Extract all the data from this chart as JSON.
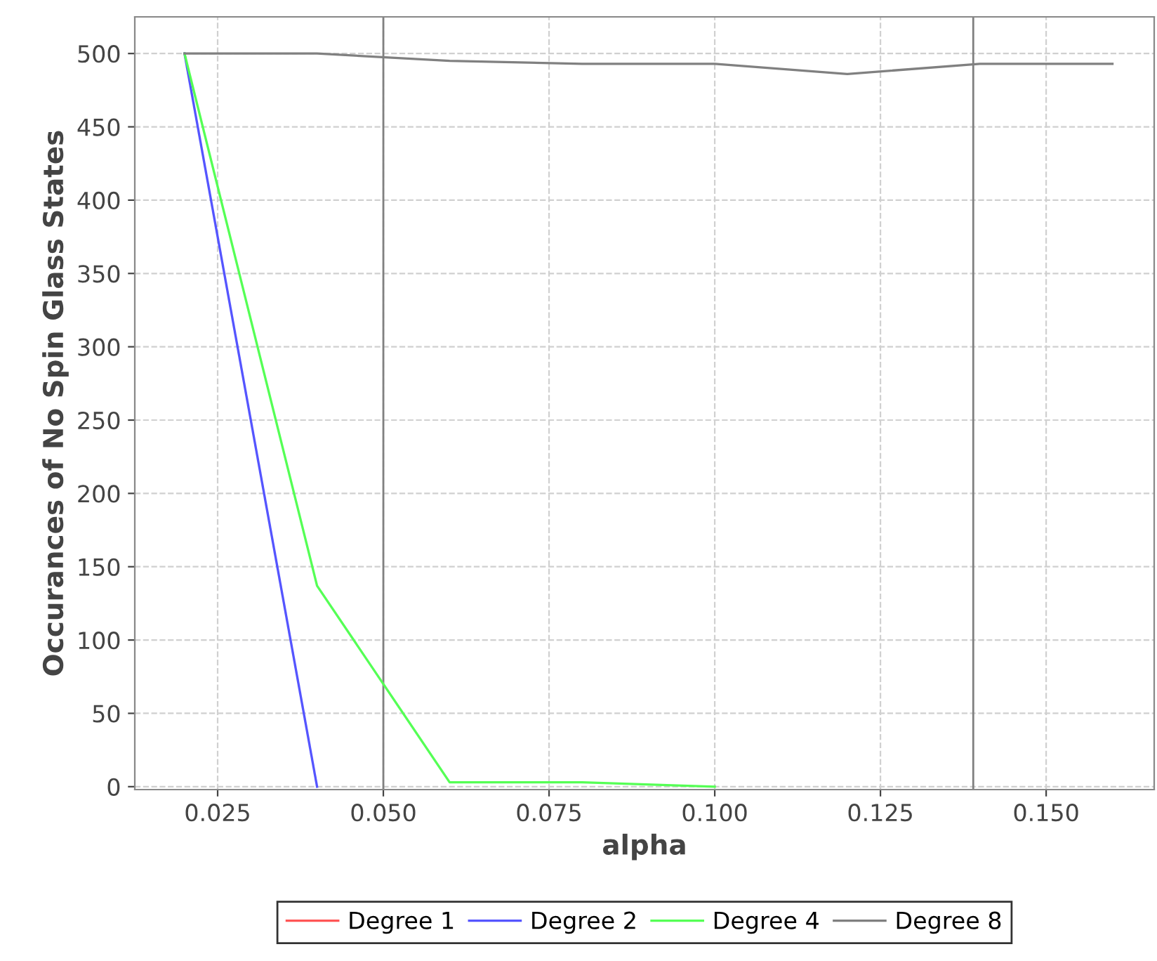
{
  "chart_data": {
    "type": "line",
    "xlabel": "alpha",
    "ylabel": "Occurances of No Spin Glass States",
    "xlim": [
      0.0125,
      0.1663
    ],
    "ylim": [
      -2,
      525
    ],
    "xticks": [
      {
        "value": 0.025,
        "label": "0.025"
      },
      {
        "value": 0.05,
        "label": "0.050"
      },
      {
        "value": 0.075,
        "label": "0.075"
      },
      {
        "value": 0.1,
        "label": "0.100"
      },
      {
        "value": 0.125,
        "label": "0.125"
      },
      {
        "value": 0.15,
        "label": "0.150"
      }
    ],
    "yticks": [
      0,
      50,
      100,
      150,
      200,
      250,
      300,
      350,
      400,
      450,
      500
    ],
    "grid": true,
    "legend": "bottom",
    "marker": "none",
    "line_style": "solid",
    "ref_lines": [
      {
        "axis": "x",
        "value": 0.05,
        "color": "#808080"
      },
      {
        "axis": "x",
        "value": 0.139,
        "color": "#808080"
      }
    ],
    "series": [
      {
        "name": "Degree 1",
        "color": "#ff5555"
      },
      {
        "name": "Degree 2",
        "color": "#5555ff",
        "x": [
          0.02,
          0.04
        ],
        "values": [
          500,
          0
        ]
      },
      {
        "name": "Degree 4",
        "color": "#55ff55",
        "x": [
          0.02,
          0.04,
          0.06,
          0.08,
          0.1
        ],
        "values": [
          500,
          137,
          3,
          3,
          0
        ]
      },
      {
        "name": "Degree 8",
        "color": "#808080",
        "x": [
          0.02,
          0.04,
          0.06,
          0.08,
          0.1,
          0.12,
          0.14,
          0.16
        ],
        "values": [
          500,
          500,
          495,
          493,
          493,
          486,
          493,
          493
        ]
      }
    ]
  }
}
